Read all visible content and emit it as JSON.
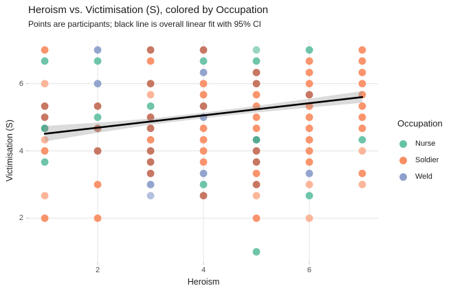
{
  "header": {
    "title": "Heroism vs. Victimisation (S), colored by Occupation",
    "subtitle": "Points are participants; black line is overall linear fit with 95% CI"
  },
  "legend": {
    "title": "Occupation",
    "items": [
      {
        "label": "Nurse",
        "color": "#66C2A5"
      },
      {
        "label": "Soldier",
        "color": "#F98E64"
      },
      {
        "label": "Weld",
        "color": "#8DA0CB"
      }
    ]
  },
  "chart_data": {
    "type": "scatter",
    "title": "Heroism vs. Victimisation (S), colored by Occupation",
    "subtitle": "Points are participants; black line is overall linear fit with 95% CI",
    "xlabel": "Heroism",
    "ylabel": "Victimisation (S)",
    "xlim": [
      0.7,
      7.3
    ],
    "ylim": [
      0.7,
      7.3
    ],
    "x_ticks": [
      2,
      4,
      6
    ],
    "y_ticks": [
      2,
      4,
      6
    ],
    "grid": "major-only",
    "grid_color": "#E8E8E8",
    "tick_color": "#CFCFCF",
    "legend_position": "right",
    "point_radius": 5.4,
    "series": [
      {
        "name": "Nurse",
        "shades": {
          "n": "#66C2A5",
          "l": "#93D4BC",
          "d": "#4BA78B"
        },
        "points": [
          [
            1,
            6.67,
            "n"
          ],
          [
            1,
            4.67,
            "d"
          ],
          [
            1,
            3.67,
            "n"
          ],
          [
            2,
            6.67,
            "n"
          ],
          [
            2,
            5,
            "n"
          ],
          [
            3,
            5.33,
            "n"
          ],
          [
            4,
            6.67,
            "n"
          ],
          [
            4,
            3,
            "n"
          ],
          [
            5,
            7,
            "l"
          ],
          [
            5,
            6.67,
            "n"
          ],
          [
            5,
            4.33,
            "d"
          ],
          [
            5,
            1,
            "n"
          ],
          [
            6,
            7,
            "n"
          ],
          [
            6,
            2.67,
            "n"
          ],
          [
            7,
            4.33,
            "n"
          ]
        ]
      },
      {
        "name": "Soldier",
        "shades": {
          "n": "#F98E64",
          "l": "#FBB295",
          "d": "#C4705A"
        },
        "points": [
          [
            1,
            7,
            "n"
          ],
          [
            1,
            6,
            "l"
          ],
          [
            1,
            5.33,
            "d"
          ],
          [
            1,
            5,
            "d"
          ],
          [
            1,
            4.33,
            "l"
          ],
          [
            1,
            4,
            "n"
          ],
          [
            1,
            2.67,
            "l"
          ],
          [
            1,
            2,
            "n"
          ],
          [
            2,
            5.33,
            "d"
          ],
          [
            2,
            4.67,
            "d"
          ],
          [
            2,
            4,
            "d"
          ],
          [
            2,
            3,
            "n"
          ],
          [
            2,
            2,
            "n"
          ],
          [
            3,
            7,
            "d"
          ],
          [
            3,
            6.67,
            "n"
          ],
          [
            3,
            6,
            "d"
          ],
          [
            3,
            5.67,
            "l"
          ],
          [
            3,
            5,
            "d"
          ],
          [
            3,
            4.67,
            "d"
          ],
          [
            3,
            4.33,
            "n"
          ],
          [
            3,
            4,
            "d"
          ],
          [
            3,
            3.67,
            "d"
          ],
          [
            3,
            3.33,
            "d"
          ],
          [
            4,
            7,
            "d"
          ],
          [
            4,
            6,
            "n"
          ],
          [
            4,
            5.67,
            "n"
          ],
          [
            4,
            5.33,
            "d"
          ],
          [
            4,
            4.67,
            "n"
          ],
          [
            4,
            4.33,
            "n"
          ],
          [
            4,
            4,
            "n"
          ],
          [
            4,
            3.67,
            "n"
          ],
          [
            4,
            2.67,
            "d"
          ],
          [
            5,
            6.33,
            "d"
          ],
          [
            5,
            6,
            "d"
          ],
          [
            5,
            5.67,
            "n"
          ],
          [
            5,
            5.33,
            "n"
          ],
          [
            5,
            5,
            "n"
          ],
          [
            5,
            4.67,
            "n"
          ],
          [
            5,
            4,
            "d"
          ],
          [
            5,
            3.67,
            "d"
          ],
          [
            5,
            3.33,
            "n"
          ],
          [
            5,
            3,
            "d"
          ],
          [
            5,
            2.67,
            "l"
          ],
          [
            5,
            2,
            "n"
          ],
          [
            6,
            6.67,
            "n"
          ],
          [
            6,
            6.33,
            "n"
          ],
          [
            6,
            6,
            "n"
          ],
          [
            6,
            5.67,
            "d"
          ],
          [
            6,
            5.33,
            "n"
          ],
          [
            6,
            5,
            "n"
          ],
          [
            6,
            4.67,
            "n"
          ],
          [
            6,
            4.33,
            "n"
          ],
          [
            6,
            4,
            "n"
          ],
          [
            6,
            3.67,
            "n"
          ],
          [
            6,
            3,
            "l"
          ],
          [
            6,
            2,
            "l"
          ],
          [
            7,
            7,
            "n"
          ],
          [
            7,
            6.67,
            "n"
          ],
          [
            7,
            6.33,
            "n"
          ],
          [
            7,
            6,
            "n"
          ],
          [
            7,
            5.67,
            "n"
          ],
          [
            7,
            5.33,
            "n"
          ],
          [
            7,
            5,
            "n"
          ],
          [
            7,
            4.67,
            "n"
          ],
          [
            7,
            4,
            "l"
          ],
          [
            7,
            3.33,
            "n"
          ],
          [
            7,
            3,
            "l"
          ]
        ]
      },
      {
        "name": "Weld",
        "shades": {
          "n": "#8DA0CB",
          "l": "#AFBDDC",
          "d": "#7B90C2"
        },
        "points": [
          [
            2,
            7,
            "n"
          ],
          [
            2,
            6,
            "n"
          ],
          [
            3,
            3,
            "n"
          ],
          [
            3,
            2.67,
            "l"
          ],
          [
            4,
            6.33,
            "n"
          ],
          [
            4,
            5,
            "n"
          ],
          [
            4,
            3.33,
            "n"
          ],
          [
            6,
            3.33,
            "n"
          ]
        ]
      }
    ],
    "fit_line": {
      "color": "#000000",
      "width": 2.6,
      "x1": 1,
      "y1": 4.51,
      "x2": 7,
      "y2": 5.6
    },
    "ci_band": {
      "color": "#999999",
      "opacity": 0.35,
      "x": [
        1,
        2,
        3,
        4,
        5,
        6,
        7
      ],
      "upper": [
        4.74,
        4.84,
        4.96,
        5.14,
        5.34,
        5.55,
        5.78
      ],
      "lower": [
        4.28,
        4.54,
        4.78,
        4.97,
        5.14,
        5.29,
        5.43
      ]
    }
  }
}
